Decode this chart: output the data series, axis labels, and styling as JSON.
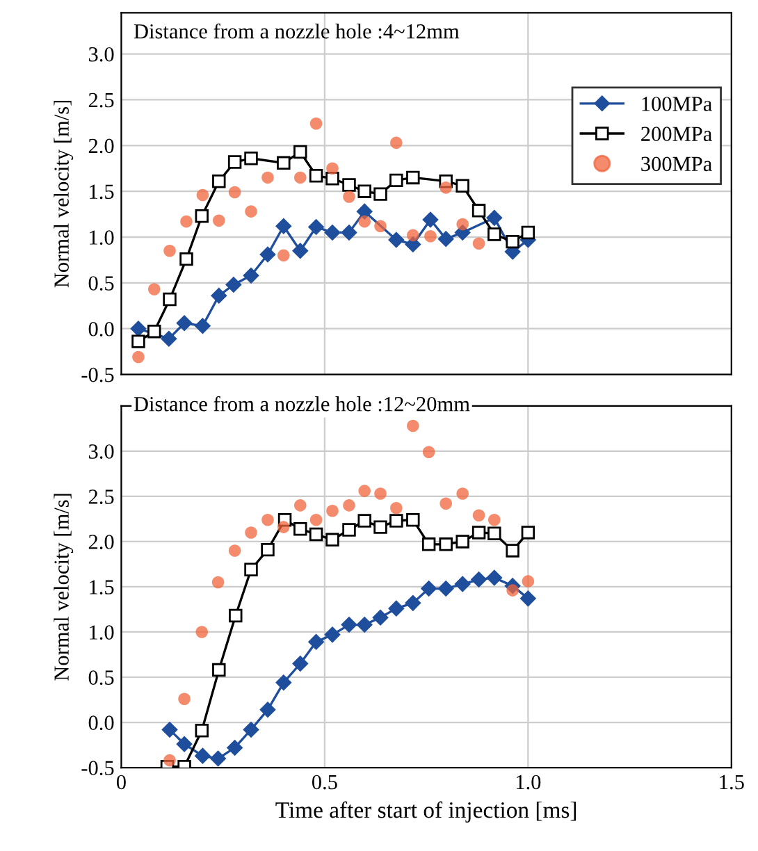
{
  "chart_data": [
    {
      "type": "line",
      "title": "Distance from a nozzle hole :4~12mm",
      "ylabel": "Normal velocity [m/s]",
      "xlim": [
        0,
        1.5
      ],
      "ylim": [
        -0.5,
        3.45
      ],
      "yticks": [
        -0.5,
        {
          "value": 0,
          "label": "0.0"
        },
        0.5,
        {
          "value": 1.0,
          "label": "1.0"
        },
        1.5,
        {
          "value": 2.0,
          "label": "2.0"
        },
        2.5,
        {
          "value": 3.0,
          "label": "3.0"
        }
      ],
      "tick_labels": "y",
      "grid": true,
      "legend": "right",
      "xticks": [
        0,
        0.5,
        1,
        1.5
      ],
      "series": [
        {
          "name": "100MPa",
          "color": "#1f4e9c",
          "marker": "diamond",
          "x": [
            0.042,
            0.117,
            0.155,
            0.2,
            0.24,
            0.276,
            0.319,
            0.36,
            0.399,
            0.44,
            0.479,
            0.519,
            0.56,
            0.598,
            0.676,
            0.717,
            0.76,
            0.798,
            0.839,
            0.917,
            0.962,
            1.0
          ],
          "values": [
            0.0,
            -0.11,
            0.06,
            0.03,
            0.36,
            0.48,
            0.58,
            0.81,
            1.12,
            0.85,
            1.11,
            1.05,
            1.05,
            1.28,
            0.97,
            0.92,
            1.19,
            0.98,
            1.05,
            1.21,
            0.84,
            0.97
          ]
        },
        {
          "name": "200MPa",
          "color": "#000000",
          "marker": "square",
          "x": [
            0.042,
            0.081,
            0.119,
            0.16,
            0.198,
            0.24,
            0.279,
            0.319,
            0.399,
            0.44,
            0.479,
            0.519,
            0.56,
            0.598,
            0.637,
            0.676,
            0.717,
            0.798,
            0.839,
            0.879,
            0.917,
            0.962,
            1.0
          ],
          "values": [
            -0.14,
            -0.03,
            0.32,
            0.76,
            1.23,
            1.61,
            1.82,
            1.86,
            1.81,
            1.93,
            1.67,
            1.64,
            1.57,
            1.5,
            1.47,
            1.62,
            1.65,
            1.61,
            1.56,
            1.29,
            1.03,
            0.95,
            1.05
          ]
        },
        {
          "name": "300MPa",
          "color": "#f0643c",
          "marker": "circle",
          "type": "scatter",
          "x": [
            0.042,
            0.081,
            0.119,
            0.16,
            0.2,
            0.24,
            0.279,
            0.319,
            0.36,
            0.399,
            0.44,
            0.479,
            0.519,
            0.56,
            0.598,
            0.637,
            0.676,
            0.717,
            0.76,
            0.798,
            0.839,
            0.879
          ],
          "values": [
            -0.31,
            0.43,
            0.85,
            1.17,
            1.46,
            1.18,
            1.49,
            1.28,
            1.65,
            0.8,
            1.65,
            2.24,
            1.75,
            1.44,
            1.17,
            1.12,
            2.03,
            1.02,
            1.01,
            1.54,
            1.14,
            0.93
          ]
        }
      ]
    },
    {
      "type": "line",
      "title": "Distance from a nozzle hole :12~20mm",
      "xlabel": "Time after start of injection [ms]",
      "ylabel": "Normal velocity [m/s]",
      "xlim": [
        0,
        1.5
      ],
      "xticks": [
        0,
        0.5,
        {
          "value": 1.0,
          "label": "1.0"
        },
        1.5
      ],
      "ylim": [
        -0.5,
        3.5
      ],
      "yticks": [
        -0.5,
        {
          "value": 0,
          "label": "0.0"
        },
        0.5,
        {
          "value": 1.0,
          "label": "1.0"
        },
        1.5,
        {
          "value": 2.0,
          "label": "2.0"
        },
        2.5,
        {
          "value": 3.0,
          "label": "3.0"
        }
      ],
      "grid": true,
      "series": [
        {
          "color": "#1f4e9c",
          "marker": "diamond",
          "x": [
            0.119,
            0.155,
            0.2,
            0.238,
            0.279,
            0.319,
            0.36,
            0.399,
            0.44,
            0.479,
            0.519,
            0.56,
            0.598,
            0.637,
            0.676,
            0.717,
            0.756,
            0.798,
            0.839,
            0.879,
            0.917,
            0.962,
            1.0
          ],
          "values": [
            -0.08,
            -0.24,
            -0.37,
            -0.4,
            -0.28,
            -0.08,
            0.14,
            0.44,
            0.65,
            0.89,
            0.97,
            1.08,
            1.08,
            1.16,
            1.26,
            1.32,
            1.48,
            1.48,
            1.53,
            1.58,
            1.6,
            1.51,
            1.37
          ]
        },
        {
          "color": "#000000",
          "marker": "square",
          "x": [
            0.113,
            0.155,
            0.198,
            0.24,
            0.281,
            0.319,
            0.36,
            0.402,
            0.44,
            0.479,
            0.519,
            0.56,
            0.598,
            0.637,
            0.676,
            0.717,
            0.756,
            0.798,
            0.839,
            0.879,
            0.917,
            0.962,
            1.0
          ],
          "values": [
            -0.49,
            -0.49,
            -0.09,
            0.58,
            1.18,
            1.69,
            1.91,
            2.24,
            2.14,
            2.08,
            2.02,
            2.13,
            2.23,
            2.16,
            2.23,
            2.24,
            1.97,
            1.97,
            2.0,
            2.1,
            2.09,
            1.9,
            2.1
          ]
        },
        {
          "color": "#f0643c",
          "marker": "circle",
          "type": "scatter",
          "x": [
            0.119,
            0.155,
            0.198,
            0.238,
            0.279,
            0.319,
            0.36,
            0.399,
            0.44,
            0.479,
            0.519,
            0.56,
            0.598,
            0.637,
            0.676,
            0.717,
            0.756,
            0.798,
            0.839,
            0.879,
            0.917,
            0.962,
            1.0
          ],
          "values": [
            -0.42,
            0.26,
            1.0,
            1.55,
            1.9,
            2.1,
            2.24,
            2.16,
            2.4,
            2.24,
            2.34,
            2.4,
            2.56,
            2.53,
            2.37,
            3.28,
            2.99,
            2.42,
            2.53,
            2.29,
            2.24,
            1.46,
            1.56
          ]
        }
      ]
    }
  ]
}
